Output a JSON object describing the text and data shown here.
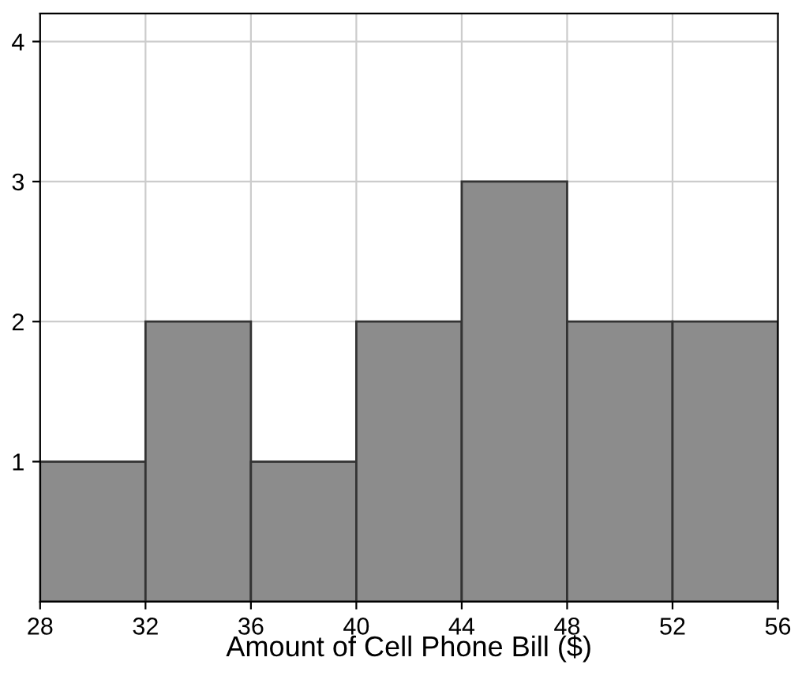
{
  "chart_data": {
    "type": "histogram",
    "xlabel": "Amount of Cell Phone Bill ($)",
    "bins": [
      28,
      32,
      36,
      40,
      44,
      48,
      52,
      56
    ],
    "values": [
      1,
      2,
      1,
      2,
      3,
      2,
      2
    ],
    "color": "#8c8c8c",
    "xlim": [
      28,
      56
    ],
    "ylim": [
      0,
      4.2
    ],
    "xticks": [
      28,
      32,
      36,
      40,
      44,
      48,
      52,
      56
    ],
    "yticks": [
      1,
      2,
      3,
      4
    ],
    "grid": true
  }
}
